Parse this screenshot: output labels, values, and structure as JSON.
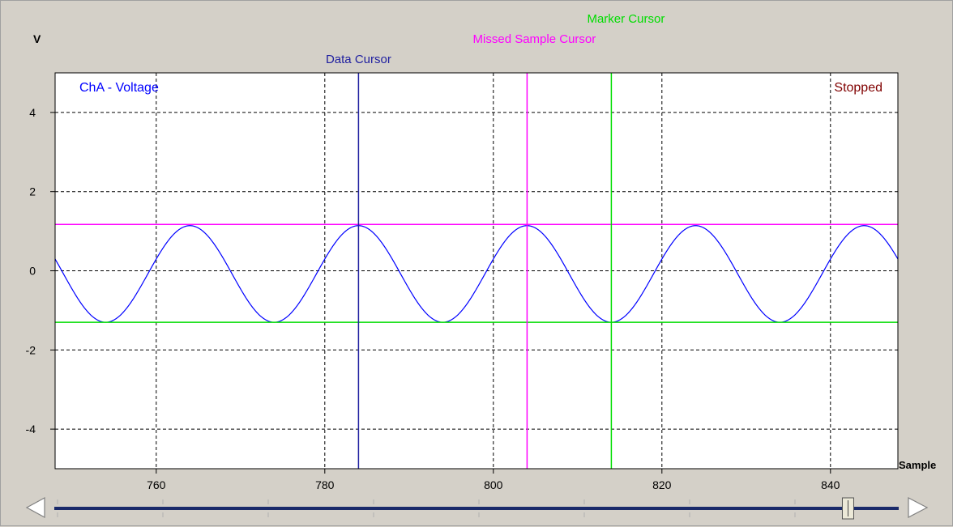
{
  "colors": {
    "background": "#d4d0c8",
    "plot_bg": "#ffffff",
    "trace": "#0000ff",
    "data_cursor": "#2020a0",
    "missed_sample_cursor": "#ff00ff",
    "marker_cursor": "#00dd00",
    "stopped": "#800000",
    "grid": "#000000"
  },
  "labels": {
    "y_unit": "V",
    "x_unit": "Sample",
    "channel": "ChA - Voltage",
    "status": "Stopped",
    "data_cursor": "Data Cursor",
    "missed_sample_cursor": "Missed Sample Cursor",
    "marker_cursor": "Marker Cursor"
  },
  "scrollbar": {
    "position_fraction": 0.94,
    "left_arrow_icon": "triangle-left-icon",
    "right_arrow_icon": "triangle-right-icon"
  },
  "chart_data": {
    "type": "line",
    "xlabel": "Sample",
    "ylabel": "V",
    "xlim": [
      748,
      848
    ],
    "ylim": [
      -5,
      5
    ],
    "x_ticks": [
      760,
      780,
      800,
      820,
      840
    ],
    "y_ticks": [
      4,
      2,
      0,
      -2,
      -4
    ],
    "grid": true,
    "series": [
      {
        "name": "ChA - Voltage",
        "amplitude": 1.22,
        "offset": -0.08,
        "period": 20,
        "peak_at": 764
      }
    ],
    "cursors": {
      "data_cursor_x": 784,
      "missed_sample_cursor_x": 804,
      "marker_cursor_x": 814,
      "upper_level_y": 1.17,
      "lower_level_y": -1.3
    }
  }
}
